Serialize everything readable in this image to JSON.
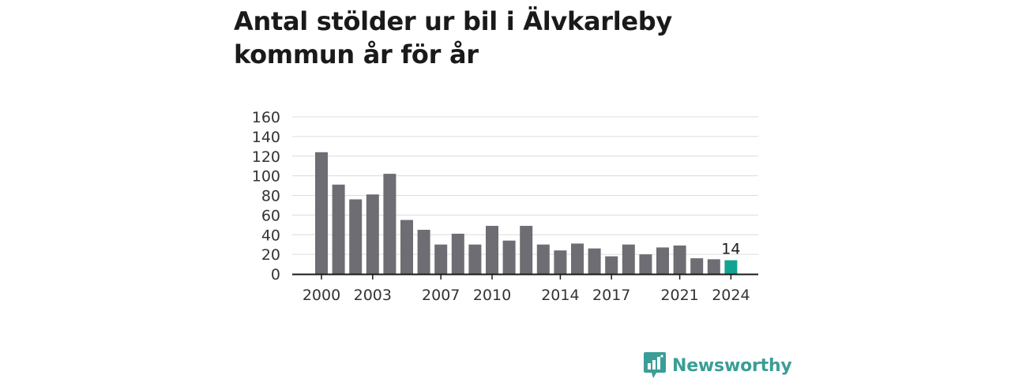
{
  "title": "Antal stölder ur bil i Älvkarleby kommun år för år",
  "brand": {
    "name": "Newsworthy",
    "icon": "newsworthy-logo-icon"
  },
  "colors": {
    "bar": "#6e6d73",
    "highlight": "#14a391",
    "grid": "#dcdcdc",
    "axis": "#1a1a1a",
    "text": "#333333",
    "brand": "#3a9e96"
  },
  "chart_data": {
    "type": "bar",
    "title": "Antal stölder ur bil i Älvkarleby kommun år för år",
    "xlabel": "",
    "ylabel": "",
    "ylim": [
      0,
      160
    ],
    "yticks": [
      0,
      20,
      40,
      60,
      80,
      100,
      120,
      140,
      160
    ],
    "grid": true,
    "categories": [
      2000,
      2001,
      2002,
      2003,
      2004,
      2005,
      2006,
      2007,
      2008,
      2009,
      2010,
      2011,
      2012,
      2013,
      2014,
      2015,
      2016,
      2017,
      2018,
      2019,
      2020,
      2021,
      2022,
      2023,
      2024
    ],
    "values": [
      124,
      91,
      76,
      81,
      102,
      55,
      45,
      30,
      41,
      30,
      49,
      34,
      49,
      30,
      24,
      31,
      26,
      18,
      30,
      20,
      27,
      29,
      16,
      15,
      14
    ],
    "xtick_labels": [
      2000,
      2003,
      2007,
      2010,
      2014,
      2017,
      2021,
      2024
    ],
    "highlight": {
      "category": 2024,
      "label": "14"
    }
  }
}
